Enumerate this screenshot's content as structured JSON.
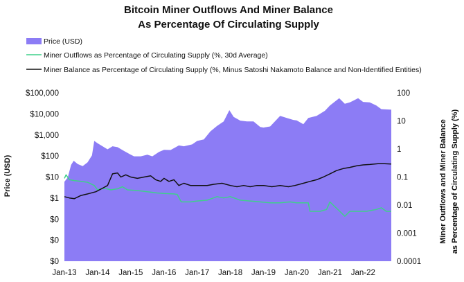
{
  "chart_data": {
    "type": "area",
    "title": [
      "Bitcoin Miner Outflows And Miner Balance",
      "As Percentage Of Circulating Supply"
    ],
    "legend": [
      {
        "label": "Price (USD)",
        "kind": "area",
        "color": "#8c7cf5"
      },
      {
        "label": "Miner Outflows as Percentage of Circulating Supply (%, 30d Average)",
        "kind": "line",
        "color": "#3ed08a"
      },
      {
        "label": "Miner Balance as Percentage of Circulating Supply (%, Minus Satoshi Nakamoto Balance and Non-Identified Entities)",
        "kind": "line",
        "color": "#111111"
      }
    ],
    "ylabel_left": "Price (USD)",
    "ylabel_right": [
      "Miner Outflows and Miner Balance",
      "as Percentage of Circulating Supply (%)"
    ],
    "x_ticks": [
      "Jan-13",
      "Jan-14",
      "Jan-15",
      "Jan-16",
      "Jan-17",
      "Jan-18",
      "Jan-19",
      "Jan-20",
      "Jan-21",
      "Jan-22"
    ],
    "y_left_ticks": [
      "$100,000",
      "$10,000",
      "$1,000",
      "$100",
      "$10",
      "$1",
      "$0",
      "$0",
      "$0"
    ],
    "y_right_ticks": [
      "100",
      "10",
      "1",
      "0.1",
      "0.01",
      "0.001",
      "0.0001"
    ],
    "x_range": [
      2013.0,
      2022.85
    ],
    "y_left_log_range": [
      -2,
      5
    ],
    "y_right_log_range": [
      -4,
      2
    ],
    "series": [
      {
        "name": "Price (USD)",
        "axis": "left",
        "points": [
          [
            2013.0,
            20
          ],
          [
            2013.1,
            30
          ],
          [
            2013.2,
            100
          ],
          [
            2013.28,
            150
          ],
          [
            2013.4,
            110
          ],
          [
            2013.55,
            90
          ],
          [
            2013.7,
            130
          ],
          [
            2013.83,
            250
          ],
          [
            2013.9,
            1000
          ],
          [
            2014.0,
            800
          ],
          [
            2014.15,
            600
          ],
          [
            2014.3,
            450
          ],
          [
            2014.45,
            600
          ],
          [
            2014.6,
            550
          ],
          [
            2014.8,
            380
          ],
          [
            2015.0,
            270
          ],
          [
            2015.1,
            230
          ],
          [
            2015.3,
            230
          ],
          [
            2015.5,
            270
          ],
          [
            2015.65,
            230
          ],
          [
            2015.85,
            350
          ],
          [
            2016.0,
            430
          ],
          [
            2016.2,
            420
          ],
          [
            2016.45,
            650
          ],
          [
            2016.6,
            600
          ],
          [
            2016.85,
            720
          ],
          [
            2017.0,
            1000
          ],
          [
            2017.2,
            1150
          ],
          [
            2017.4,
            2500
          ],
          [
            2017.6,
            4200
          ],
          [
            2017.8,
            6500
          ],
          [
            2017.97,
            19000
          ],
          [
            2018.1,
            10000
          ],
          [
            2018.3,
            7000
          ],
          [
            2018.5,
            6500
          ],
          [
            2018.7,
            6500
          ],
          [
            2018.9,
            3800
          ],
          [
            2019.0,
            3600
          ],
          [
            2019.2,
            4000
          ],
          [
            2019.5,
            11000
          ],
          [
            2019.7,
            9000
          ],
          [
            2019.9,
            7500
          ],
          [
            2020.0,
            7200
          ],
          [
            2020.2,
            5000
          ],
          [
            2020.35,
            9000
          ],
          [
            2020.6,
            11000
          ],
          [
            2020.85,
            18000
          ],
          [
            2021.0,
            30000
          ],
          [
            2021.28,
            60000
          ],
          [
            2021.45,
            35000
          ],
          [
            2021.6,
            40000
          ],
          [
            2021.85,
            60000
          ],
          [
            2022.0,
            42000
          ],
          [
            2022.2,
            40000
          ],
          [
            2022.4,
            30000
          ],
          [
            2022.55,
            21000
          ],
          [
            2022.85,
            20000
          ]
        ]
      },
      {
        "name": "Miner Outflows as Percentage of Circulating Supply (%, 30d Average)",
        "axis": "right",
        "points": [
          [
            2013.0,
            0.09
          ],
          [
            2013.05,
            0.12
          ],
          [
            2013.15,
            0.08
          ],
          [
            2013.3,
            0.075
          ],
          [
            2013.5,
            0.07
          ],
          [
            2013.7,
            0.065
          ],
          [
            2013.9,
            0.05
          ],
          [
            2014.0,
            0.035
          ],
          [
            2014.2,
            0.04
          ],
          [
            2014.4,
            0.035
          ],
          [
            2014.6,
            0.038
          ],
          [
            2014.75,
            0.045
          ],
          [
            2014.9,
            0.035
          ],
          [
            2015.2,
            0.033
          ],
          [
            2015.5,
            0.03
          ],
          [
            2015.8,
            0.027
          ],
          [
            2016.0,
            0.026
          ],
          [
            2016.3,
            0.025
          ],
          [
            2016.4,
            0.024
          ],
          [
            2016.52,
            0.013
          ],
          [
            2016.8,
            0.013
          ],
          [
            2017.0,
            0.014
          ],
          [
            2017.3,
            0.015
          ],
          [
            2017.6,
            0.02
          ],
          [
            2017.8,
            0.018
          ],
          [
            2018.0,
            0.02
          ],
          [
            2018.3,
            0.015
          ],
          [
            2018.6,
            0.014
          ],
          [
            2018.9,
            0.013
          ],
          [
            2019.2,
            0.012
          ],
          [
            2019.5,
            0.012
          ],
          [
            2019.8,
            0.013
          ],
          [
            2020.0,
            0.012
          ],
          [
            2020.35,
            0.012
          ],
          [
            2020.4,
            0.006
          ],
          [
            2020.7,
            0.006
          ],
          [
            2020.9,
            0.007
          ],
          [
            2021.0,
            0.013
          ],
          [
            2021.1,
            0.01
          ],
          [
            2021.3,
            0.006
          ],
          [
            2021.45,
            0.004
          ],
          [
            2021.6,
            0.006
          ],
          [
            2021.9,
            0.006
          ],
          [
            2022.1,
            0.006
          ],
          [
            2022.4,
            0.007
          ],
          [
            2022.55,
            0.008
          ],
          [
            2022.7,
            0.006
          ],
          [
            2022.85,
            0.006
          ]
        ]
      },
      {
        "name": "Miner Balance as Percentage of Circulating Supply (%, Minus Satoshi Nakamoto Balance and Non-Identified Entities)",
        "axis": "right",
        "points": [
          [
            2013.0,
            0.02
          ],
          [
            2013.15,
            0.018
          ],
          [
            2013.3,
            0.017
          ],
          [
            2013.5,
            0.022
          ],
          [
            2013.7,
            0.025
          ],
          [
            2013.95,
            0.03
          ],
          [
            2014.15,
            0.04
          ],
          [
            2014.3,
            0.05
          ],
          [
            2014.45,
            0.13
          ],
          [
            2014.6,
            0.14
          ],
          [
            2014.7,
            0.1
          ],
          [
            2014.85,
            0.12
          ],
          [
            2015.0,
            0.1
          ],
          [
            2015.2,
            0.09
          ],
          [
            2015.4,
            0.1
          ],
          [
            2015.6,
            0.11
          ],
          [
            2015.75,
            0.08
          ],
          [
            2015.9,
            0.07
          ],
          [
            2016.0,
            0.09
          ],
          [
            2016.15,
            0.07
          ],
          [
            2016.3,
            0.08
          ],
          [
            2016.45,
            0.05
          ],
          [
            2016.6,
            0.06
          ],
          [
            2016.8,
            0.05
          ],
          [
            2017.0,
            0.05
          ],
          [
            2017.3,
            0.05
          ],
          [
            2017.5,
            0.055
          ],
          [
            2017.75,
            0.06
          ],
          [
            2018.0,
            0.05
          ],
          [
            2018.2,
            0.045
          ],
          [
            2018.4,
            0.05
          ],
          [
            2018.6,
            0.045
          ],
          [
            2018.8,
            0.05
          ],
          [
            2019.0,
            0.05
          ],
          [
            2019.25,
            0.045
          ],
          [
            2019.5,
            0.05
          ],
          [
            2019.75,
            0.045
          ],
          [
            2019.95,
            0.05
          ],
          [
            2020.2,
            0.06
          ],
          [
            2020.4,
            0.07
          ],
          [
            2020.6,
            0.08
          ],
          [
            2020.8,
            0.1
          ],
          [
            2021.0,
            0.13
          ],
          [
            2021.2,
            0.17
          ],
          [
            2021.4,
            0.2
          ],
          [
            2021.6,
            0.22
          ],
          [
            2021.8,
            0.25
          ],
          [
            2022.0,
            0.27
          ],
          [
            2022.2,
            0.28
          ],
          [
            2022.45,
            0.3
          ],
          [
            2022.65,
            0.3
          ],
          [
            2022.85,
            0.29
          ]
        ]
      }
    ]
  }
}
